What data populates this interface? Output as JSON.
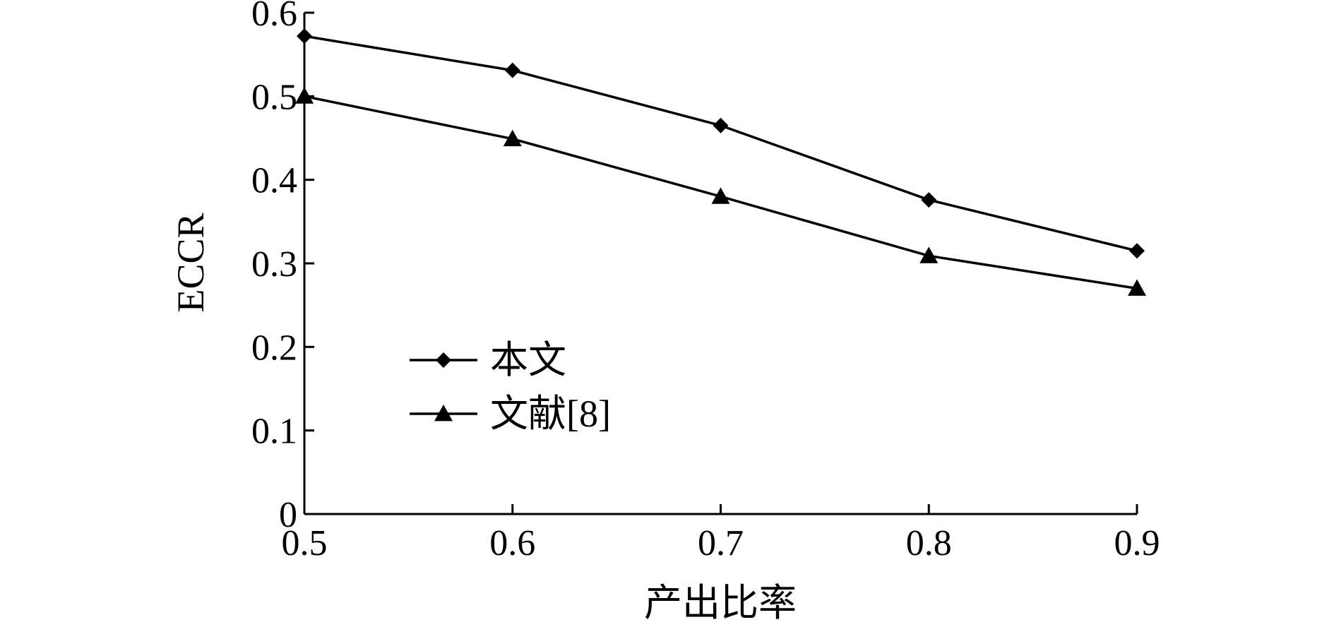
{
  "chart_data": {
    "type": "line",
    "x": [
      0.5,
      0.6,
      0.7,
      0.8,
      0.9
    ],
    "x_tick_labels": [
      "0.5",
      "0.6",
      "0.7",
      "0.8",
      "0.9"
    ],
    "y_tick_values": [
      0,
      0.1,
      0.2,
      0.3,
      0.4,
      0.5,
      0.6
    ],
    "y_tick_labels": [
      "0",
      "0.1",
      "0.2",
      "0.3",
      "0.4",
      "0.5",
      "0.6"
    ],
    "xlabel": "产出比率",
    "ylabel": "ECCR",
    "xlim": [
      0.5,
      0.9
    ],
    "ylim": [
      0,
      0.6
    ],
    "grid": false,
    "legend_position": "center-left",
    "series": [
      {
        "name": "本文",
        "marker": "diamond",
        "color": "#000000",
        "values": [
          0.572,
          0.531,
          0.465,
          0.376,
          0.315
        ]
      },
      {
        "name": "文献[8]",
        "marker": "triangle",
        "color": "#000000",
        "values": [
          0.5,
          0.449,
          0.38,
          0.309,
          0.27
        ]
      }
    ]
  }
}
